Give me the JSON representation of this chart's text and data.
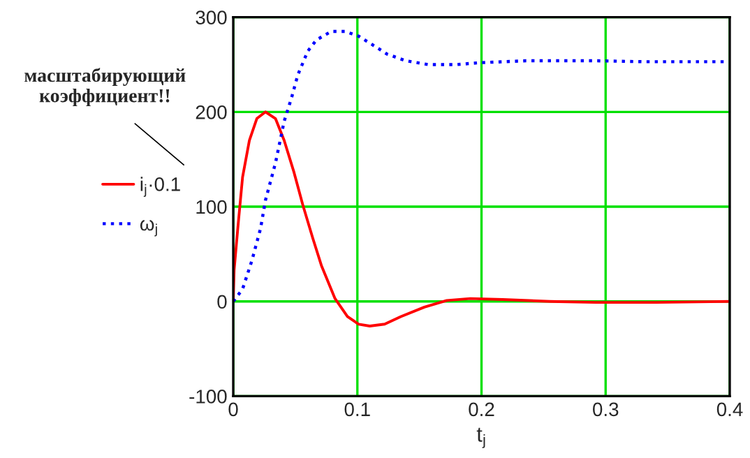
{
  "chart_data": {
    "type": "line",
    "xlabel": "t$_{j}$",
    "annotations": [
      "масштабирующий коэффициент!!"
    ],
    "xlim": [
      0,
      0.4
    ],
    "xticks": [
      0,
      0.1,
      0.2,
      0.3,
      0.4
    ],
    "ylim": [
      -100,
      300
    ],
    "yticks": [
      -100,
      0,
      100,
      200,
      300
    ],
    "grid": true,
    "legend": "left",
    "series": [
      {
        "name": "i$_{j}$·0.1",
        "color": "#ff0000",
        "line_style": "solid",
        "x": [
          0,
          0.0007,
          0.004,
          0.0075,
          0.013,
          0.019,
          0.026,
          0.034,
          0.041,
          0.049,
          0.056,
          0.064,
          0.071,
          0.082,
          0.092,
          0.101,
          0.11,
          0.122,
          0.135,
          0.154,
          0.172,
          0.191,
          0.217,
          0.255,
          0.292,
          0.341,
          0.4
        ],
        "values": [
          0,
          33,
          82,
          131,
          170,
          193,
          200,
          193,
          170,
          136,
          102,
          67,
          38,
          3,
          -16,
          -24,
          -26,
          -24,
          -16,
          -6,
          1,
          3,
          2,
          0,
          -1,
          -1,
          0
        ]
      },
      {
        "name": "ω$_{j}$",
        "color": "#0000ff",
        "line_style": "dotted",
        "x": [
          0,
          0.0075,
          0.015,
          0.022,
          0.026,
          0.034,
          0.041,
          0.047,
          0.052,
          0.06,
          0.067,
          0.079,
          0.09,
          0.101,
          0.112,
          0.124,
          0.139,
          0.157,
          0.18,
          0.199,
          0.236,
          0.292,
          0.33,
          0.397
        ],
        "values": [
          0,
          13,
          43,
          77,
          107,
          146,
          190,
          215,
          239,
          264,
          276,
          285,
          285,
          280,
          271,
          261,
          254,
          250,
          250,
          252,
          254,
          254,
          253,
          253
        ]
      }
    ]
  }
}
